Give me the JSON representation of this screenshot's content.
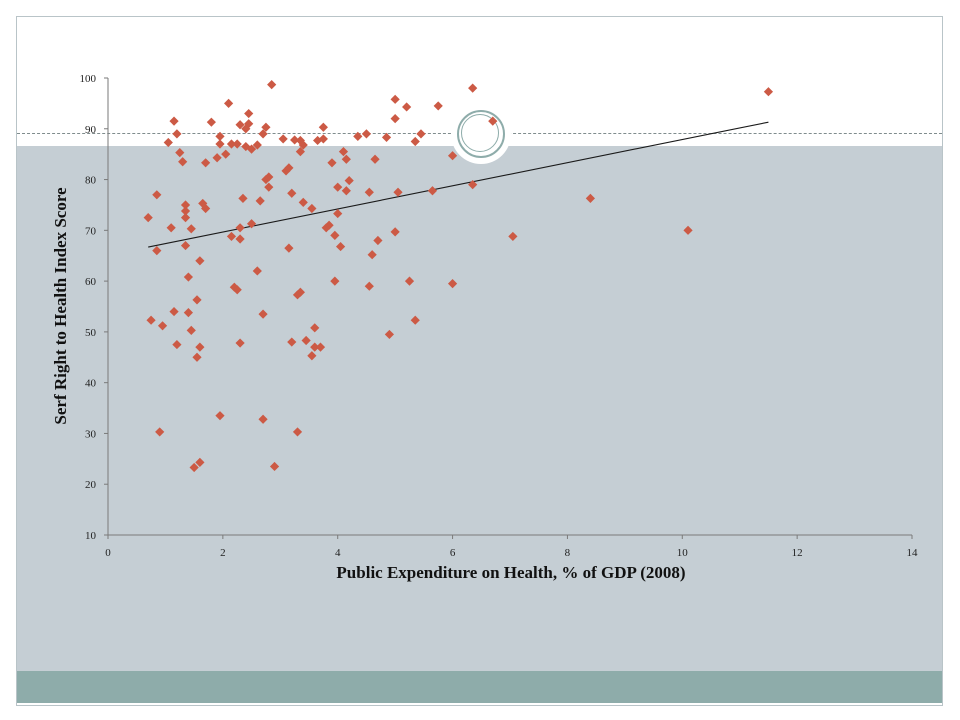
{
  "colors": {
    "marker": "#cc5a45",
    "band": "#c5ced4",
    "footer_band": "#8eacaa",
    "trendline": "#1a1a1a"
  },
  "decoration": {
    "circle_icon": "double-ring-circle-icon"
  },
  "chart_data": {
    "type": "scatter",
    "xlabel": "Public Expenditure on Health, % of GDP (2008)",
    "ylabel": "Serf Right to Health Index Score",
    "xlim": [
      0,
      14
    ],
    "ylim": [
      10,
      100
    ],
    "xticks": [
      0,
      2,
      4,
      6,
      8,
      10,
      12,
      14
    ],
    "yticks": [
      10,
      20,
      30,
      40,
      50,
      60,
      70,
      80,
      90,
      100
    ],
    "grid": false,
    "legend": "none",
    "marker": "diamond",
    "trendline": {
      "type": "linear",
      "x": [
        0.7,
        11.5
      ],
      "y": [
        66.7,
        91.3
      ]
    },
    "points": [
      [
        0.7,
        72.5
      ],
      [
        0.75,
        52.3
      ],
      [
        0.85,
        77.0
      ],
      [
        0.85,
        66.0
      ],
      [
        0.9,
        30.3
      ],
      [
        0.95,
        51.2
      ],
      [
        1.05,
        87.3
      ],
      [
        1.1,
        70.5
      ],
      [
        1.15,
        91.5
      ],
      [
        1.15,
        54.0
      ],
      [
        1.2,
        89.0
      ],
      [
        1.2,
        47.5
      ],
      [
        1.25,
        85.3
      ],
      [
        1.3,
        83.5
      ],
      [
        1.35,
        75.0
      ],
      [
        1.35,
        73.8
      ],
      [
        1.35,
        72.5
      ],
      [
        1.35,
        67.0
      ],
      [
        1.4,
        60.8
      ],
      [
        1.4,
        53.8
      ],
      [
        1.45,
        70.3
      ],
      [
        1.45,
        50.3
      ],
      [
        1.5,
        23.3
      ],
      [
        1.55,
        56.3
      ],
      [
        1.55,
        45.0
      ],
      [
        1.6,
        64.0
      ],
      [
        1.6,
        47.0
      ],
      [
        1.6,
        24.3
      ],
      [
        1.65,
        75.3
      ],
      [
        1.7,
        74.3
      ],
      [
        1.7,
        83.3
      ],
      [
        1.8,
        91.3
      ],
      [
        1.9,
        84.3
      ],
      [
        1.95,
        88.5
      ],
      [
        1.95,
        87.0
      ],
      [
        1.95,
        33.5
      ],
      [
        2.05,
        85.0
      ],
      [
        2.1,
        95.0
      ],
      [
        2.15,
        87.0
      ],
      [
        2.15,
        68.8
      ],
      [
        2.2,
        58.8
      ],
      [
        2.25,
        58.3
      ],
      [
        2.25,
        87.0
      ],
      [
        2.3,
        90.8
      ],
      [
        2.3,
        70.5
      ],
      [
        2.3,
        68.3
      ],
      [
        2.3,
        47.8
      ],
      [
        2.35,
        76.3
      ],
      [
        2.4,
        90.0
      ],
      [
        2.4,
        86.5
      ],
      [
        2.45,
        93.0
      ],
      [
        2.45,
        91.0
      ],
      [
        2.5,
        86.0
      ],
      [
        2.5,
        71.3
      ],
      [
        2.6,
        86.8
      ],
      [
        2.6,
        62.0
      ],
      [
        2.65,
        75.8
      ],
      [
        2.7,
        89.0
      ],
      [
        2.7,
        53.5
      ],
      [
        2.7,
        32.8
      ],
      [
        2.75,
        90.3
      ],
      [
        2.75,
        80.0
      ],
      [
        2.8,
        80.5
      ],
      [
        2.8,
        78.5
      ],
      [
        2.85,
        98.7
      ],
      [
        2.9,
        23.5
      ],
      [
        3.05,
        88.0
      ],
      [
        3.1,
        81.7
      ],
      [
        3.15,
        82.3
      ],
      [
        3.15,
        66.5
      ],
      [
        3.2,
        77.3
      ],
      [
        3.2,
        48.0
      ],
      [
        3.25,
        87.8
      ],
      [
        3.3,
        30.3
      ],
      [
        3.3,
        57.3
      ],
      [
        3.35,
        57.8
      ],
      [
        3.35,
        87.7
      ],
      [
        3.35,
        85.5
      ],
      [
        3.4,
        86.8
      ],
      [
        3.4,
        75.5
      ],
      [
        3.45,
        48.3
      ],
      [
        3.55,
        74.3
      ],
      [
        3.55,
        45.3
      ],
      [
        3.6,
        47.0
      ],
      [
        3.6,
        50.8
      ],
      [
        3.65,
        87.7
      ],
      [
        3.7,
        47.0
      ],
      [
        3.75,
        88.0
      ],
      [
        3.75,
        90.3
      ],
      [
        3.8,
        70.5
      ],
      [
        3.85,
        71.0
      ],
      [
        3.9,
        83.3
      ],
      [
        3.95,
        69.0
      ],
      [
        3.95,
        60.0
      ],
      [
        4.0,
        73.3
      ],
      [
        4.0,
        78.5
      ],
      [
        4.05,
        66.8
      ],
      [
        4.1,
        85.5
      ],
      [
        4.15,
        84.0
      ],
      [
        4.15,
        77.8
      ],
      [
        4.2,
        79.8
      ],
      [
        4.35,
        88.5
      ],
      [
        4.5,
        89.0
      ],
      [
        4.55,
        77.5
      ],
      [
        4.55,
        59.0
      ],
      [
        4.6,
        65.2
      ],
      [
        4.65,
        84.0
      ],
      [
        4.7,
        68.0
      ],
      [
        4.85,
        88.3
      ],
      [
        4.9,
        49.5
      ],
      [
        5.0,
        95.8
      ],
      [
        5.0,
        92.0
      ],
      [
        5.0,
        69.7
      ],
      [
        5.05,
        77.5
      ],
      [
        5.2,
        94.3
      ],
      [
        5.25,
        60.0
      ],
      [
        5.35,
        87.5
      ],
      [
        5.35,
        52.3
      ],
      [
        5.45,
        89.0
      ],
      [
        5.65,
        77.8
      ],
      [
        5.75,
        94.5
      ],
      [
        6.0,
        84.7
      ],
      [
        6.0,
        59.5
      ],
      [
        6.35,
        79.0
      ],
      [
        6.35,
        98.0
      ],
      [
        6.7,
        91.5
      ],
      [
        7.05,
        68.8
      ],
      [
        8.4,
        76.3
      ],
      [
        10.1,
        70.0
      ],
      [
        11.5,
        97.3
      ]
    ]
  }
}
